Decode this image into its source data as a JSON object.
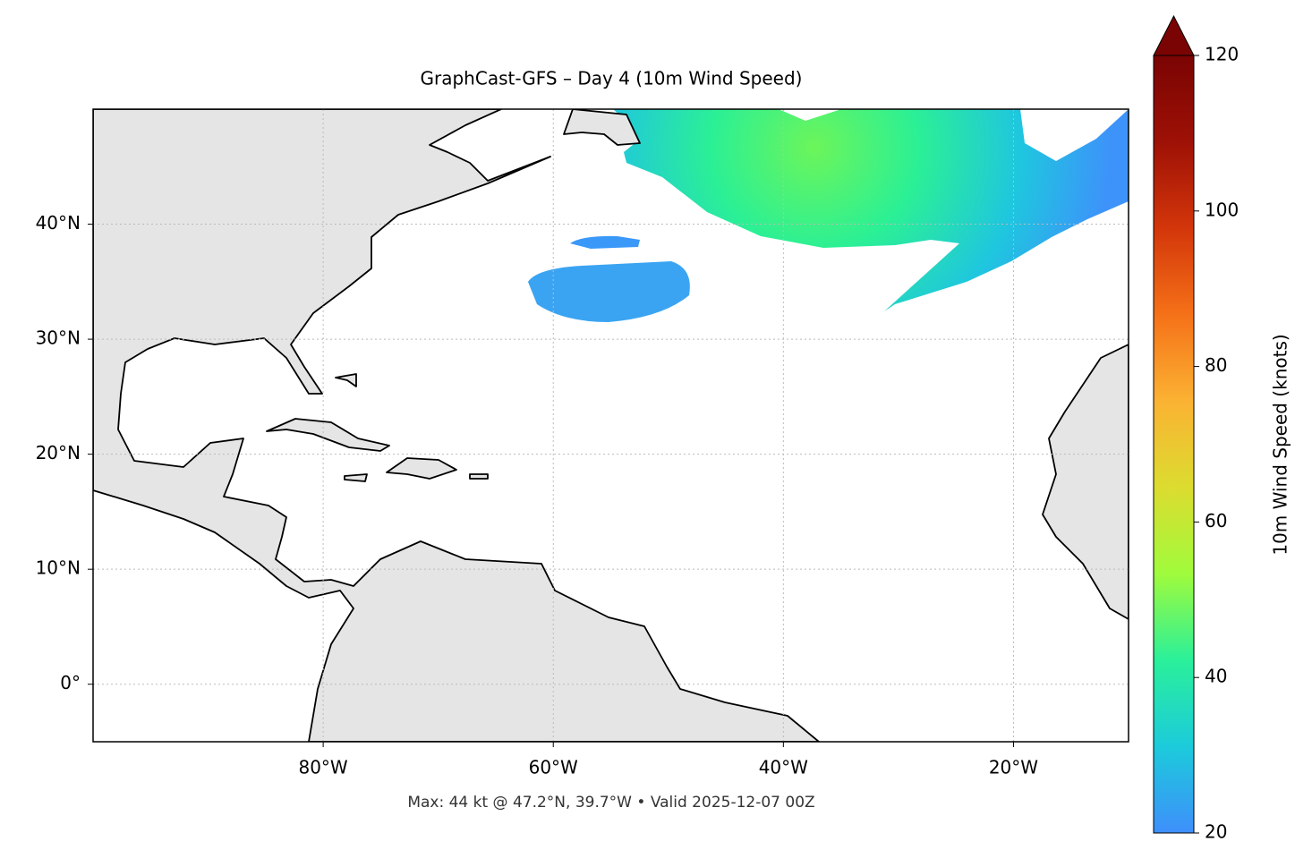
{
  "chart_data": {
    "type": "map",
    "title": "GraphCast-GFS – Day 4 (10m Wind Speed)",
    "annotation": "Max: 44 kt @ 47.2°N, 39.7°W • Valid 2025-12-07 00Z",
    "xlim": [
      -100,
      -10
    ],
    "ylim": [
      -5,
      50
    ],
    "xticks": [
      {
        "value": -80,
        "label": "80°W"
      },
      {
        "value": -60,
        "label": "60°W"
      },
      {
        "value": -40,
        "label": "40°W"
      },
      {
        "value": -20,
        "label": "20°W"
      }
    ],
    "yticks": [
      {
        "value": 0,
        "label": "0°"
      },
      {
        "value": 10,
        "label": "10°N"
      },
      {
        "value": 20,
        "label": "20°N"
      },
      {
        "value": 30,
        "label": "30°N"
      },
      {
        "value": 40,
        "label": "40°N"
      }
    ],
    "grid": true,
    "colorbar": {
      "label": "10m Wind Speed (knots)",
      "lim": [
        20,
        120
      ],
      "ticks": [
        20,
        40,
        60,
        80,
        100,
        120
      ],
      "extend": "max",
      "colors": [
        "#3e8ffb",
        "#1ccbdb",
        "#2af09a",
        "#a0fb3c",
        "#dcdc2f",
        "#fbb233",
        "#f57118",
        "#d3360a",
        "#9e1106",
        "#7a0403"
      ]
    }
  }
}
